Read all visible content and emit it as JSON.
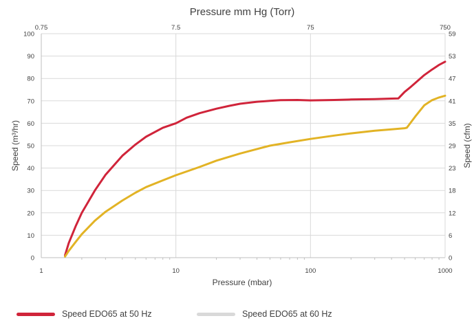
{
  "chart_data": {
    "type": "line",
    "title": "Pressure mm Hg (Torr)",
    "xlabel": "Pressure (mbar)",
    "ylabel": "Speed (m³/hr)",
    "ylabel_right": "Speed (cfm)",
    "x_scale": "log",
    "xlim": [
      1,
      1000
    ],
    "ylim": [
      0,
      100
    ],
    "grid": true,
    "legend_position": "bottom",
    "x_ticks_bottom": [
      {
        "value": 1,
        "label": "1"
      },
      {
        "value": 10,
        "label": "10"
      },
      {
        "value": 100,
        "label": "100"
      },
      {
        "value": 1000,
        "label": "1000"
      }
    ],
    "x_ticks_top": [
      {
        "value": 1,
        "label": "0.75"
      },
      {
        "value": 10,
        "label": "7.5"
      },
      {
        "value": 100,
        "label": "75"
      },
      {
        "value": 1000,
        "label": "750"
      }
    ],
    "y_ticks_left": [
      {
        "value": 0,
        "label": "0"
      },
      {
        "value": 10,
        "label": "10"
      },
      {
        "value": 20,
        "label": "20"
      },
      {
        "value": 30,
        "label": "30"
      },
      {
        "value": 40,
        "label": "40"
      },
      {
        "value": 50,
        "label": "50"
      },
      {
        "value": 60,
        "label": "60"
      },
      {
        "value": 70,
        "label": "70"
      },
      {
        "value": 80,
        "label": "80"
      },
      {
        "value": 90,
        "label": "90"
      },
      {
        "value": 100,
        "label": "100"
      }
    ],
    "y_ticks_right": [
      {
        "value": 0,
        "label": "0"
      },
      {
        "value": 10,
        "label": "6"
      },
      {
        "value": 20,
        "label": "12"
      },
      {
        "value": 30,
        "label": "18"
      },
      {
        "value": 40,
        "label": "23"
      },
      {
        "value": 50,
        "label": "29"
      },
      {
        "value": 60,
        "label": "35"
      },
      {
        "value": 70,
        "label": "41"
      },
      {
        "value": 80,
        "label": "47"
      },
      {
        "value": 90,
        "label": "53"
      },
      {
        "value": 100,
        "label": "59"
      }
    ],
    "series": [
      {
        "name": "Speed EDO65 at 50 Hz",
        "color": "#d0243a",
        "legend_color": "#d0243a",
        "points": [
          [
            1.5,
            1
          ],
          [
            1.6,
            6.5
          ],
          [
            1.8,
            14
          ],
          [
            2,
            20
          ],
          [
            2.5,
            30
          ],
          [
            3,
            37
          ],
          [
            4,
            45.5
          ],
          [
            5,
            50.5
          ],
          [
            6,
            54
          ],
          [
            8,
            58
          ],
          [
            10,
            60
          ],
          [
            12,
            62.5
          ],
          [
            15,
            64.5
          ],
          [
            20,
            66.5
          ],
          [
            25,
            67.8
          ],
          [
            30,
            68.7
          ],
          [
            40,
            69.6
          ],
          [
            50,
            70
          ],
          [
            60,
            70.3
          ],
          [
            80,
            70.4
          ],
          [
            100,
            70.2
          ],
          [
            150,
            70.4
          ],
          [
            200,
            70.6
          ],
          [
            300,
            70.8
          ],
          [
            400,
            71
          ],
          [
            450,
            71.1
          ],
          [
            500,
            74
          ],
          [
            550,
            76
          ],
          [
            600,
            78
          ],
          [
            700,
            81.5
          ],
          [
            800,
            84
          ],
          [
            900,
            86
          ],
          [
            1000,
            87.5
          ]
        ]
      },
      {
        "name": "Speed EDO65 at 60 Hz",
        "color": "#e2b325",
        "legend_color": "#d9d9d9",
        "points": [
          [
            1.5,
            0.5
          ],
          [
            1.6,
            3
          ],
          [
            1.8,
            7
          ],
          [
            2,
            10.5
          ],
          [
            2.5,
            16.5
          ],
          [
            3,
            20.5
          ],
          [
            4,
            25.5
          ],
          [
            5,
            29
          ],
          [
            6,
            31.5
          ],
          [
            8,
            34.5
          ],
          [
            10,
            36.8
          ],
          [
            15,
            40.5
          ],
          [
            20,
            43.3
          ],
          [
            30,
            46.5
          ],
          [
            40,
            48.5
          ],
          [
            50,
            50
          ],
          [
            70,
            51.5
          ],
          [
            100,
            53
          ],
          [
            150,
            54.5
          ],
          [
            200,
            55.5
          ],
          [
            300,
            56.7
          ],
          [
            400,
            57.3
          ],
          [
            500,
            57.8
          ],
          [
            520,
            58
          ],
          [
            600,
            63
          ],
          [
            700,
            68
          ],
          [
            800,
            70.3
          ],
          [
            900,
            71.5
          ],
          [
            1000,
            72.3
          ]
        ]
      }
    ]
  }
}
